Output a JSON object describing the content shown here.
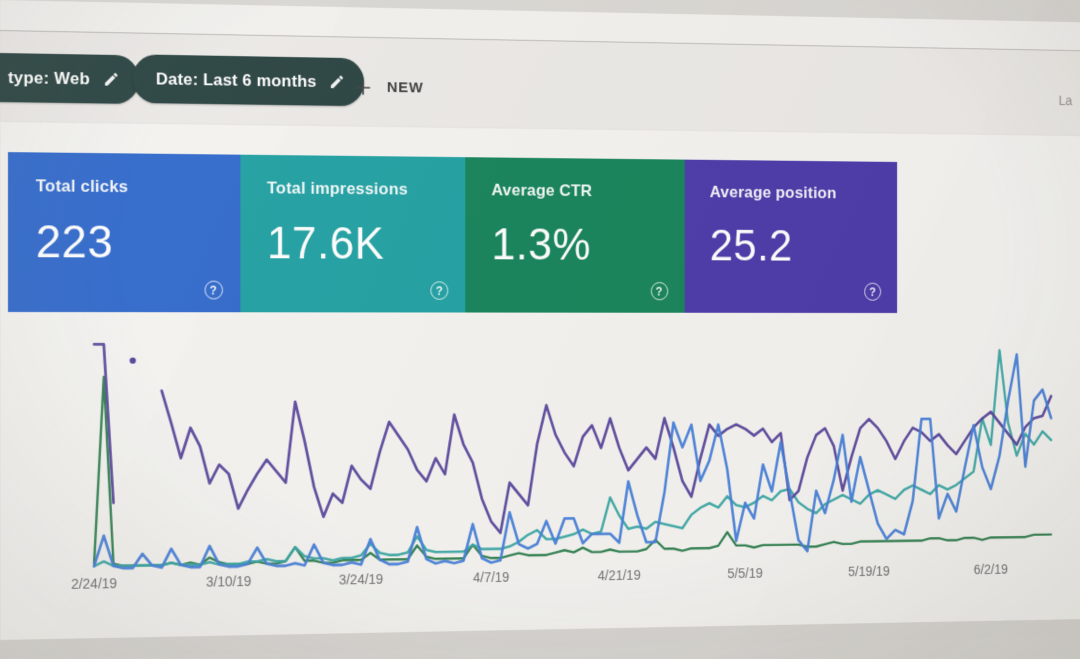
{
  "header": {
    "chips": [
      {
        "label": "type: Web"
      },
      {
        "label": "Date: Last 6 months"
      }
    ],
    "new_label": "NEW",
    "corner_text": "La",
    "chip_color": "#25413f"
  },
  "icons": {
    "edit": "pencil",
    "new": "plus",
    "help": "?"
  },
  "cards": [
    {
      "label": "Total clicks",
      "value": "223",
      "color": "#2a68d4"
    },
    {
      "label": "Total impressions",
      "value": "17.6K",
      "color": "#15a1a4"
    },
    {
      "label": "Average CTR",
      "value": "1.3%",
      "color": "#0d8455"
    },
    {
      "label": "Average position",
      "value": "25.2",
      "color": "#4936b0"
    }
  ],
  "chart_data": {
    "type": "line",
    "x_unit": "date (daily points)",
    "x_start": "2/24/19",
    "x_tick_interval_days": 14,
    "x_tick_labels": [
      "2/24/19",
      "3/10/19",
      "3/24/19",
      "4/7/19",
      "4/21/19",
      "5/5/19",
      "5/19/19",
      "6/2/19"
    ],
    "y_axis": "hidden; values normalized 0-100 of plot height; null = missing data gap",
    "grid": false,
    "legend": "metric cards above act as legend",
    "series": [
      {
        "name": "Average CTR",
        "color": "#1f7a45",
        "width": 2.4,
        "values": [
          2,
          82,
          2,
          1,
          1,
          1,
          1,
          1,
          2,
          1,
          2,
          1,
          4,
          2,
          1,
          1,
          1,
          2,
          1,
          1,
          2,
          8,
          2,
          2,
          1,
          1,
          2,
          2,
          2,
          5,
          2,
          2,
          2,
          2,
          8,
          3,
          2,
          2,
          2,
          2,
          8,
          3,
          2,
          2,
          3,
          4,
          3,
          3,
          3,
          4,
          5,
          4,
          6,
          4,
          4,
          5,
          4,
          4,
          4,
          5,
          9,
          5,
          5,
          4,
          5,
          5,
          5,
          6,
          12,
          6,
          6,
          5,
          6,
          6,
          6,
          6,
          6,
          5,
          5,
          6,
          7,
          6,
          6,
          7,
          7,
          7,
          7,
          7,
          7,
          7,
          7,
          8,
          8,
          7,
          7,
          8,
          8,
          7,
          8,
          8,
          8,
          8,
          8,
          9,
          9,
          9
        ]
      },
      {
        "name": "Total impressions",
        "color": "#2ea7a4",
        "width": 2.6,
        "values": [
          1,
          3,
          1,
          1,
          1,
          1,
          1,
          1,
          2,
          1,
          1,
          1,
          2,
          1,
          1,
          1,
          2,
          2,
          3,
          2,
          2,
          8,
          4,
          3,
          3,
          2,
          3,
          3,
          4,
          9,
          5,
          4,
          4,
          5,
          12,
          6,
          5,
          5,
          5,
          5,
          8,
          6,
          6,
          6,
          7,
          9,
          12,
          14,
          10,
          10,
          11,
          12,
          14,
          12,
          13,
          28,
          20,
          14,
          15,
          14,
          17,
          16,
          15,
          14,
          20,
          23,
          25,
          23,
          28,
          24,
          23,
          25,
          28,
          26,
          30,
          31,
          25,
          22,
          20,
          24,
          26,
          28,
          26,
          24,
          28,
          30,
          28,
          26,
          30,
          32,
          30,
          28,
          32,
          30,
          32,
          35,
          38,
          62,
          50,
          93,
          60,
          45,
          55,
          50,
          56,
          52
        ]
      },
      {
        "name": "Average position",
        "color": "#53409f",
        "width": 2.8,
        "values": [
          96,
          96,
          28,
          null,
          89,
          null,
          null,
          76,
          62,
          47,
          60,
          52,
          36,
          44,
          40,
          25,
          33,
          40,
          46,
          41,
          36,
          71,
          54,
          34,
          21,
          31,
          27,
          43,
          37,
          33,
          49,
          62,
          56,
          50,
          41,
          36,
          46,
          39,
          65,
          52,
          44,
          28,
          18,
          13,
          35,
          30,
          25,
          52,
          69,
          56,
          48,
          42,
          55,
          60,
          50,
          63,
          50,
          40,
          45,
          50,
          45,
          63,
          50,
          35,
          28,
          45,
          60,
          55,
          58,
          60,
          58,
          55,
          58,
          52,
          56,
          26,
          30,
          45,
          55,
          58,
          50,
          30,
          45,
          58,
          62,
          58,
          52,
          44,
          52,
          58,
          56,
          52,
          55,
          50,
          46,
          52,
          58,
          62,
          65,
          60,
          55,
          50,
          58,
          62,
          63,
          72
        ]
      },
      {
        "name": "Total clicks",
        "color": "#3d7ce0",
        "width": 2.8,
        "values": [
          1,
          14,
          1,
          0,
          0,
          6,
          1,
          0,
          8,
          1,
          0,
          0,
          9,
          1,
          0,
          0,
          1,
          8,
          1,
          0,
          0,
          1,
          0,
          9,
          1,
          0,
          0,
          1,
          0,
          11,
          2,
          0,
          0,
          1,
          16,
          2,
          0,
          1,
          0,
          1,
          17,
          2,
          0,
          1,
          22,
          8,
          6,
          8,
          18,
          8,
          19,
          19,
          8,
          12,
          12,
          12,
          8,
          35,
          20,
          8,
          8,
          30,
          61,
          50,
          60,
          35,
          44,
          60,
          40,
          8,
          25,
          18,
          42,
          30,
          52,
          30,
          8,
          3,
          30,
          20,
          35,
          55,
          25,
          45,
          30,
          15,
          8,
          12,
          10,
          25,
          62,
          62,
          17,
          28,
          20,
          40,
          59,
          40,
          30,
          45,
          70,
          91,
          40,
          70,
          75,
          62
        ]
      }
    ],
    "layout": {
      "x0": 95,
      "x_step_per_day": 9.85,
      "baseline_y": 448,
      "unit_height": 2.35
    }
  }
}
